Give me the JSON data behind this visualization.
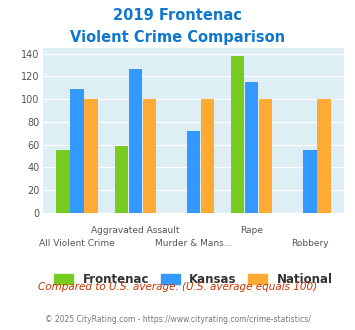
{
  "title_line1": "2019 Frontenac",
  "title_line2": "Violent Crime Comparison",
  "frontenac": [
    55,
    59,
    0,
    138,
    0
  ],
  "kansas": [
    109,
    126,
    72,
    115,
    55
  ],
  "national": [
    100,
    100,
    100,
    100,
    100
  ],
  "color_frontenac": "#77cc22",
  "color_kansas": "#3399ff",
  "color_national": "#ffaa33",
  "color_title": "#1177cc",
  "color_bg_plot": "#ddeef5",
  "color_bg_fig": "#ffffff",
  "color_footnote": "#cc3300",
  "color_copyright_text": "#777777",
  "color_copyright_link": "#3399cc",
  "ylim": [
    0,
    145
  ],
  "yticks": [
    0,
    20,
    40,
    60,
    80,
    100,
    120,
    140
  ],
  "top_labels": [
    "",
    "Aggravated Assault",
    "",
    "Rape",
    ""
  ],
  "bottom_labels": [
    "All Violent Crime",
    "",
    "Murder & Mans...",
    "",
    "Robbery"
  ],
  "footnote": "Compared to U.S. average. (U.S. average equals 100)",
  "copyright": "© 2025 CityRating.com - https://www.cityrating.com/crime-statistics/",
  "legend_labels": [
    "Frontenac",
    "Kansas",
    "National"
  ]
}
